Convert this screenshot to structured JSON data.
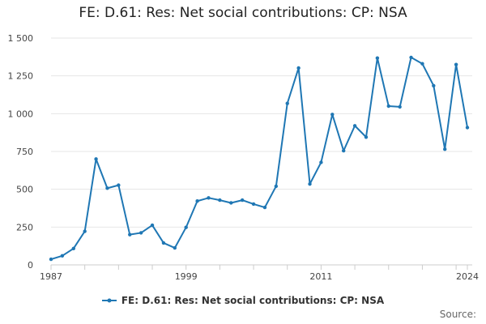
{
  "chart_data": {
    "type": "line",
    "title": "FE: D.61: Res: Net social contributions: CP: NSA",
    "xlabel": "",
    "ylabel": "",
    "x": [
      1987,
      1988,
      1989,
      1990,
      1991,
      1992,
      1993,
      1994,
      1995,
      1996,
      1997,
      1998,
      1999,
      2000,
      2001,
      2002,
      2003,
      2004,
      2005,
      2006,
      2007,
      2008,
      2009,
      2010,
      2011,
      2012,
      2013,
      2014,
      2015,
      2016,
      2017,
      2018,
      2019,
      2020,
      2021,
      2022,
      2023,
      2024
    ],
    "series": [
      {
        "name": "FE: D.61: Res: Net social contributions: CP: NSA",
        "values": [
          37,
          60,
          108,
          222,
          700,
          507,
          527,
          200,
          212,
          262,
          145,
          112,
          248,
          422,
          443,
          428,
          410,
          428,
          402,
          380,
          520,
          1068,
          1302,
          535,
          678,
          995,
          755,
          920,
          845,
          1368,
          1050,
          1045,
          1372,
          1330,
          1185,
          765,
          1325,
          908
        ]
      }
    ],
    "ylim": [
      0,
      1500
    ],
    "y_ticks": [
      "0",
      "250",
      "500",
      "750",
      "1 000",
      "1 250",
      "1 500"
    ],
    "y_tick_values": [
      0,
      250,
      500,
      750,
      1000,
      1250,
      1500
    ],
    "x_tick_labels": [
      "1987",
      "1999",
      "2011",
      "2024"
    ],
    "x_tick_values": [
      1987,
      1999,
      2011,
      2024
    ],
    "grid": "horizontal",
    "legend_position": "bottom-center",
    "colors": {
      "series": "#1f77b4",
      "grid": "#e6e6e6",
      "axis": "#cccccc"
    }
  },
  "source_label": "Source:"
}
